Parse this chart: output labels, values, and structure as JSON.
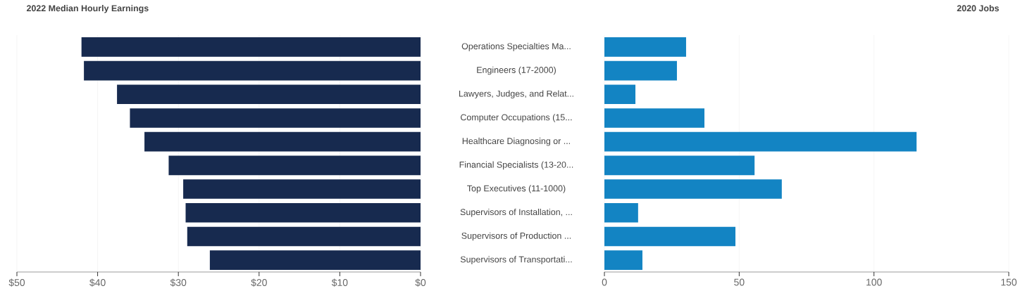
{
  "chart_data": [
    {
      "type": "bar",
      "orientation": "horizontal",
      "title": "2022 Median Hourly Earnings",
      "categories": [
        "Operations Specialties Ma...",
        "Engineers (17-2000)",
        "Lawyers, Judges, and Relat...",
        "Computer Occupations (15...",
        "Healthcare Diagnosing or ...",
        "Financial Specialists (13-20...",
        "Top Executives (11-1000)",
        "Supervisors of Installation, ...",
        "Supervisors of Production ...",
        "Supervisors of Transportati..."
      ],
      "values": [
        42.0,
        41.7,
        37.6,
        36.0,
        34.2,
        31.2,
        29.4,
        29.1,
        28.9,
        26.1
      ],
      "color": "#172a4f",
      "xlim": [
        50,
        0
      ],
      "xticks": [
        {
          "value": 50,
          "label": "$50"
        },
        {
          "value": 40,
          "label": "$40"
        },
        {
          "value": 30,
          "label": "$30"
        },
        {
          "value": 20,
          "label": "$20"
        },
        {
          "value": 10,
          "label": "$10"
        },
        {
          "value": 0,
          "label": "$0"
        }
      ],
      "grid": "x"
    },
    {
      "type": "bar",
      "orientation": "horizontal",
      "title": "2020 Jobs",
      "categories": [
        null,
        null,
        null,
        null,
        null,
        null,
        null,
        null,
        null,
        null
      ],
      "values": [
        30.3,
        26.9,
        11.5,
        37.1,
        115.8,
        55.7,
        65.8,
        12.5,
        48.6,
        14.1
      ],
      "color": "#1384c3",
      "xlim": [
        0,
        150
      ],
      "xticks": [
        0,
        50,
        100,
        150
      ],
      "grid": "x",
      "tick_labels": "x"
    }
  ]
}
